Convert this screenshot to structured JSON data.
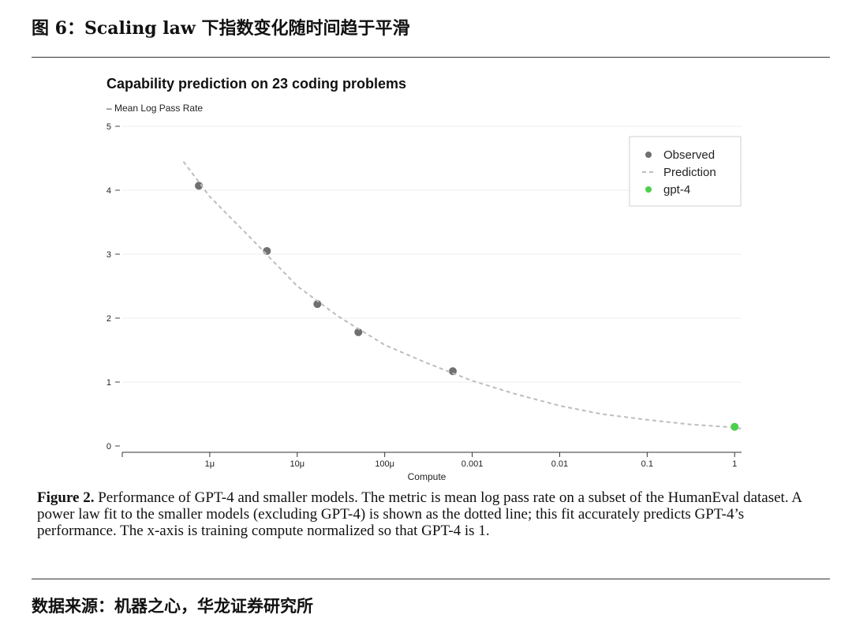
{
  "header": {
    "title": "图 6：Scaling law 下指数变化随时间趋于平滑"
  },
  "chart_data": {
    "type": "scatter",
    "title": "Capability prediction on 23 coding problems",
    "ylabel": "– Mean Log Pass Rate",
    "xlabel": "Compute",
    "xscale": "log",
    "xlim": [
      1e-07,
      1.2
    ],
    "ylim": [
      0,
      5
    ],
    "x_ticks": [
      {
        "value": 1e-06,
        "label": "1μ"
      },
      {
        "value": 1e-05,
        "label": "10μ"
      },
      {
        "value": 0.0001,
        "label": "100μ"
      },
      {
        "value": 0.001,
        "label": "0.001"
      },
      {
        "value": 0.01,
        "label": "0.01"
      },
      {
        "value": 0.1,
        "label": "0.1"
      },
      {
        "value": 1,
        "label": "1"
      }
    ],
    "y_ticks": [
      0,
      1,
      2,
      3,
      4,
      5
    ],
    "grid": "horizontal",
    "legend": {
      "placement": "top-right",
      "entries": [
        {
          "label": "Observed",
          "marker": "dot",
          "color": "#707070"
        },
        {
          "label": "Prediction",
          "marker": "dashed",
          "color": "#bdbdbd"
        },
        {
          "label": "gpt-4",
          "marker": "dot",
          "color": "#4cd04c"
        }
      ]
    },
    "series": [
      {
        "name": "Observed",
        "color": "#707070",
        "points": [
          {
            "x": 7.5e-07,
            "y": 4.07
          },
          {
            "x": 4.5e-06,
            "y": 3.05
          },
          {
            "x": 1.7e-05,
            "y": 2.22
          },
          {
            "x": 5e-05,
            "y": 1.78
          },
          {
            "x": 0.0006,
            "y": 1.17
          }
        ]
      },
      {
        "name": "Prediction",
        "style": "dashed",
        "color": "#bdbdbd",
        "points": [
          {
            "x": 5e-07,
            "y": 4.45
          },
          {
            "x": 1e-06,
            "y": 3.9
          },
          {
            "x": 3e-06,
            "y": 3.24
          },
          {
            "x": 1e-05,
            "y": 2.5
          },
          {
            "x": 3e-05,
            "y": 2.02
          },
          {
            "x": 0.0001,
            "y": 1.58
          },
          {
            "x": 0.0003,
            "y": 1.3
          },
          {
            "x": 0.001,
            "y": 1.02
          },
          {
            "x": 0.003,
            "y": 0.82
          },
          {
            "x": 0.01,
            "y": 0.63
          },
          {
            "x": 0.03,
            "y": 0.5
          },
          {
            "x": 0.1,
            "y": 0.41
          },
          {
            "x": 0.3,
            "y": 0.34
          },
          {
            "x": 1,
            "y": 0.29
          },
          {
            "x": 1.2,
            "y": 0.27
          }
        ]
      },
      {
        "name": "gpt-4",
        "color": "#4cd04c",
        "points": [
          {
            "x": 1,
            "y": 0.3
          }
        ]
      }
    ]
  },
  "caption": {
    "label": "Figure 2.",
    "text": " Performance of GPT-4 and smaller models. The metric is mean log pass rate on a subset of the HumanEval dataset. A power law fit to the smaller models (excluding GPT-4) is shown as the dotted line; this fit accurately predicts GPT-4’s performance. The x-axis is training compute normalized so that GPT-4 is 1."
  },
  "source": {
    "text": "数据来源：机器之心，华龙证券研究所"
  }
}
